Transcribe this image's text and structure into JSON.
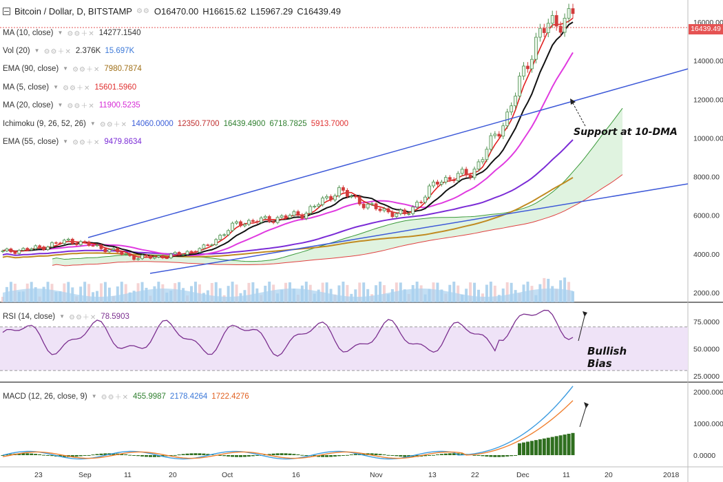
{
  "header": {
    "symbol": "Bitcoin / Dollar, D, BITSTAMP",
    "open": "O16470.00",
    "high": "H16615.62",
    "low": "L15967.29",
    "close": "C16439.49",
    "icons": "⚙⚙"
  },
  "price_tag": "16439.49",
  "indicators": [
    {
      "label": "MA (10, close)",
      "values": [
        {
          "v": "14277.1540",
          "color": "#333333"
        }
      ]
    },
    {
      "label": "Vol (20)",
      "values": [
        {
          "v": "2.376K",
          "color": "#333333"
        },
        {
          "v": "15.697K",
          "color": "#3b78d8"
        }
      ]
    },
    {
      "label": "EMA (90, close)",
      "values": [
        {
          "v": "7980.7874",
          "color": "#a07018"
        }
      ]
    },
    {
      "label": "MA (5, close)",
      "values": [
        {
          "v": "15601.5960",
          "color": "#e03030"
        }
      ]
    },
    {
      "label": "MA (20, close)",
      "values": [
        {
          "v": "11900.5235",
          "color": "#d62ad6"
        }
      ]
    },
    {
      "label": "Ichimoku (9, 26, 52, 26)",
      "values": [
        {
          "v": "14060.0000",
          "color": "#3b5ed8"
        },
        {
          "v": "12350.7700",
          "color": "#c03030"
        },
        {
          "v": "16439.4900",
          "color": "#2f7f2f"
        },
        {
          "v": "6718.7825",
          "color": "#2f7f2f"
        },
        {
          "v": "5913.7000",
          "color": "#e03030"
        }
      ]
    },
    {
      "label": "EMA (55, close)",
      "values": [
        {
          "v": "9479.8634",
          "color": "#7b2cd6"
        }
      ]
    }
  ],
  "rsi_panel": {
    "label": "RSI (14, close)",
    "value": "78.5903"
  },
  "macd_panel": {
    "label": "MACD (12, 26, close, 9)",
    "values": [
      {
        "v": "455.9987",
        "color": "#2f7f2f"
      },
      {
        "v": "2178.4264",
        "color": "#3b78d8"
      },
      {
        "v": "1722.4276",
        "color": "#e06020"
      }
    ]
  },
  "annotations": {
    "support": "Support at 10-DMA",
    "bullish": "Bullish",
    "bias": "Bias"
  },
  "price_axis": [
    "16000.00",
    "14000.00",
    "12000.00",
    "10000.00",
    "8000.00",
    "6000.00",
    "4000.00",
    "2000.00"
  ],
  "rsi_axis": [
    "75.0000",
    "50.0000",
    "25.0000"
  ],
  "macd_axis": [
    "2000.0000",
    "1000.0000",
    "0.0000"
  ],
  "time_axis": [
    "23",
    "Sep",
    "11",
    "20",
    "Oct",
    "16",
    "Nov",
    "13",
    "22",
    "Dec",
    "11",
    "20",
    "2018"
  ],
  "colors": {
    "candle_up": "#4e8f4e",
    "candle_down": "#d23c3c",
    "trendline": "#3d59d8",
    "rsi_line": "#7b2f8f",
    "rsi_band": "#efe3f7",
    "macd_hist": "#2f6f1f",
    "macd_line": "#3b9be0",
    "signal_line": "#f08030",
    "cloud_fill": "#d8f0d8"
  },
  "chart_data": {
    "type": "candlestick",
    "title": "Bitcoin / Dollar, D, BITSTAMP",
    "x": [
      "23",
      "Sep",
      "11",
      "20",
      "Oct",
      "16",
      "Nov",
      "13",
      "22",
      "Dec",
      "11",
      "20",
      "2018"
    ],
    "price_range": [
      1500,
      17000
    ],
    "close_series_key_levels": [
      4100,
      4300,
      4700,
      4300,
      3800,
      3900,
      4300,
      5600,
      5800,
      6100,
      7300,
      6400,
      6000,
      7800,
      8200,
      11000,
      15500,
      16439
    ],
    "last": {
      "open": 16470.0,
      "high": 16615.62,
      "low": 15967.29,
      "close": 16439.49
    },
    "rsi": {
      "last": 78.5903,
      "bands": [
        70,
        30
      ]
    },
    "macd": {
      "macd": 2178.4264,
      "signal": 1722.4276,
      "hist": 455.9987
    }
  }
}
